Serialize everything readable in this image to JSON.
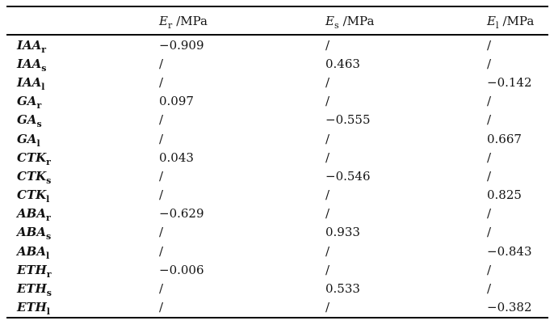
{
  "table": {
    "columns": [
      {
        "symbol": "E",
        "sub": "r",
        "unit": "/MPa"
      },
      {
        "symbol": "E",
        "sub": "s",
        "unit": "/MPa"
      },
      {
        "symbol": "E",
        "sub": "l",
        "unit": "/MPa"
      }
    ],
    "rows": [
      {
        "label": "IAA",
        "sub": "r",
        "values": [
          "−0.909",
          "/",
          "/"
        ]
      },
      {
        "label": "IAA",
        "sub": "s",
        "values": [
          "/",
          "0.463",
          "/"
        ]
      },
      {
        "label": "IAA",
        "sub": "l",
        "values": [
          "/",
          "/",
          "−0.142"
        ]
      },
      {
        "label": "GA",
        "sub": "r",
        "values": [
          "0.097",
          "/",
          "/"
        ]
      },
      {
        "label": "GA",
        "sub": "s",
        "values": [
          "/",
          "−0.555",
          "/"
        ]
      },
      {
        "label": "GA",
        "sub": "l",
        "values": [
          "/",
          "/",
          "0.667"
        ]
      },
      {
        "label": "CTK",
        "sub": "r",
        "values": [
          "0.043",
          "/",
          "/"
        ]
      },
      {
        "label": "CTK",
        "sub": "s",
        "values": [
          "/",
          "−0.546",
          "/"
        ]
      },
      {
        "label": "CTK",
        "sub": "l",
        "values": [
          "/",
          "/",
          "0.825"
        ]
      },
      {
        "label": "ABA",
        "sub": "r",
        "values": [
          "−0.629",
          "/",
          "/"
        ]
      },
      {
        "label": "ABA",
        "sub": "s",
        "values": [
          "/",
          "0.933",
          "/"
        ]
      },
      {
        "label": "ABA",
        "sub": "l",
        "values": [
          "/",
          "/",
          "−0.843"
        ]
      },
      {
        "label": "ETH",
        "sub": "r",
        "values": [
          "−0.006",
          "/",
          "/"
        ]
      },
      {
        "label": "ETH",
        "sub": "s",
        "values": [
          "/",
          "0.533",
          "/"
        ]
      },
      {
        "label": "ETH",
        "sub": "l",
        "values": [
          "/",
          "/",
          "−0.382"
        ]
      }
    ]
  }
}
